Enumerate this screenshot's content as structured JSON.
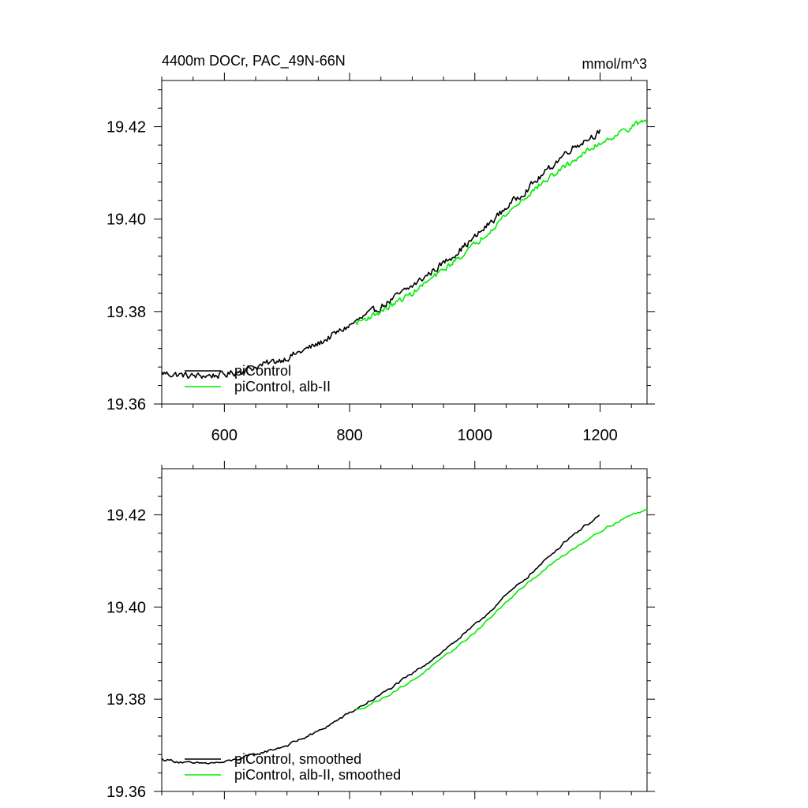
{
  "figure": {
    "title_left": "4400m DOCr, PAC_49N-66N",
    "title_right": "mmol/m^3"
  },
  "colors": {
    "piControl": "#000000",
    "albII": "#00ee00"
  },
  "chart_data": [
    {
      "type": "line",
      "panel": "top",
      "title": "4400m DOCr, PAC_49N-66N",
      "units": "mmol/m^3",
      "xlabel": "",
      "ylabel": "",
      "xlim": [
        500,
        1275
      ],
      "ylim": [
        19.36,
        19.43
      ],
      "x_ticks": [
        600,
        800,
        1000,
        1200
      ],
      "x_tick_labels": [
        "600",
        "800",
        "1000",
        "1200"
      ],
      "y_ticks": [
        19.36,
        19.38,
        19.4,
        19.42
      ],
      "y_tick_labels": [
        "19.36",
        "19.38",
        "19.40",
        "19.42"
      ],
      "legend_position": "bottom-left",
      "series": [
        {
          "name": "piControl",
          "color": "#000000",
          "x": [
            500,
            550,
            600,
            650,
            700,
            750,
            800,
            850,
            900,
            950,
            1000,
            1050,
            1100,
            1150,
            1200
          ],
          "values": [
            19.3667,
            19.366,
            19.3663,
            19.368,
            19.37,
            19.373,
            19.377,
            19.381,
            19.3855,
            19.3905,
            19.396,
            19.4025,
            19.4085,
            19.415,
            19.419
          ],
          "noise": 0.0012
        },
        {
          "name": "piControl, alb-II",
          "color": "#00ee00",
          "x": [
            810,
            850,
            900,
            950,
            1000,
            1050,
            1100,
            1150,
            1200,
            1250,
            1275
          ],
          "values": [
            19.3775,
            19.38,
            19.384,
            19.389,
            19.3945,
            19.401,
            19.407,
            19.412,
            19.4165,
            19.42,
            19.4215
          ],
          "noise": 0.001
        }
      ]
    },
    {
      "type": "line",
      "panel": "bottom",
      "xlabel": "",
      "ylabel": "",
      "xlim": [
        500,
        1275
      ],
      "ylim": [
        19.36,
        19.43
      ],
      "x_ticks": [
        600,
        800,
        1000,
        1200
      ],
      "y_ticks": [
        19.36,
        19.38,
        19.4,
        19.42
      ],
      "y_tick_labels": [
        "19.36",
        "19.38",
        "19.40",
        "19.42"
      ],
      "legend_position": "bottom-left",
      "series": [
        {
          "name": "piControl, smoothed",
          "color": "#000000",
          "x": [
            500,
            550,
            600,
            650,
            700,
            750,
            800,
            850,
            900,
            950,
            1000,
            1050,
            1100,
            1150,
            1200
          ],
          "values": [
            19.367,
            19.366,
            19.3663,
            19.368,
            19.37,
            19.373,
            19.377,
            19.381,
            19.3855,
            19.3905,
            19.396,
            19.4025,
            19.4085,
            19.415,
            19.42
          ],
          "noise": 0.0005
        },
        {
          "name": "piControl, alb-II, smoothed",
          "color": "#00ee00",
          "x": [
            810,
            850,
            900,
            950,
            1000,
            1050,
            1100,
            1150,
            1200,
            1250,
            1275
          ],
          "values": [
            19.3775,
            19.38,
            19.384,
            19.389,
            19.3945,
            19.401,
            19.407,
            19.412,
            19.4165,
            19.42,
            19.4212
          ],
          "noise": 0.0004
        }
      ]
    }
  ]
}
